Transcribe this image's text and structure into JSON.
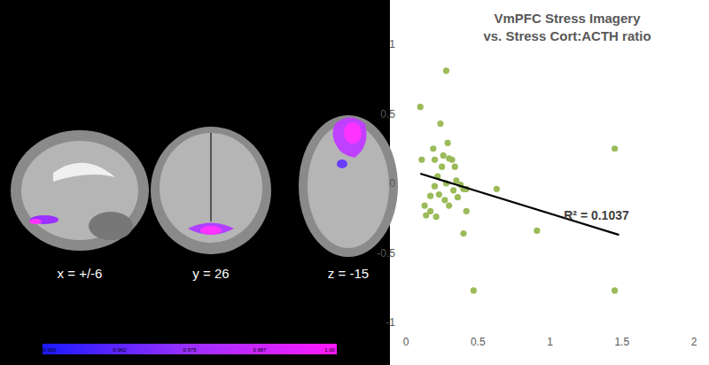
{
  "brain_panel": {
    "slices": [
      {
        "label": "x = +/-6"
      },
      {
        "label": "y = 26"
      },
      {
        "label": "z = -15"
      }
    ],
    "colorbar": {
      "labels": [
        "0.950",
        "0.962",
        "0.975",
        "0.987",
        "1.00"
      ]
    }
  },
  "chart_data": {
    "type": "scatter",
    "title": "VmPFC Stress Imagery\nvs. Stress Cort:ACTH ratio",
    "xlim": [
      0,
      2
    ],
    "xticks": [
      0,
      0.5,
      1,
      1.5,
      2
    ],
    "ylim": [
      -1,
      1
    ],
    "yticks": [
      -1,
      -0.5,
      0,
      0.5,
      1
    ],
    "grid": false,
    "series": [
      {
        "type": "scatter",
        "color": "#9bbb59",
        "marker": "circle",
        "x": [
          0.1,
          0.28,
          0.24,
          0.29,
          0.19,
          0.26,
          0.3,
          0.2,
          0.11,
          0.32,
          0.25,
          0.34,
          0.22,
          0.35,
          0.28,
          0.38,
          0.2,
          0.4,
          0.42,
          0.33,
          0.23,
          0.17,
          0.36,
          0.27,
          0.13,
          0.3,
          0.17,
          0.21,
          0.14,
          0.42,
          0.4,
          0.63,
          0.91,
          1.45,
          0.47,
          1.45
        ],
        "values": [
          0.55,
          0.81,
          0.43,
          0.29,
          0.25,
          0.2,
          0.18,
          0.17,
          0.17,
          0.17,
          0.12,
          0.12,
          0.05,
          0.02,
          0.0,
          -0.01,
          -0.02,
          -0.04,
          -0.04,
          -0.05,
          -0.08,
          -0.09,
          -0.1,
          -0.12,
          -0.16,
          -0.16,
          -0.2,
          -0.24,
          -0.23,
          -0.2,
          -0.36,
          -0.04,
          -0.34,
          0.25,
          -0.77,
          -0.77
        ]
      },
      {
        "type": "line",
        "color": "#000000",
        "line_style": "solid",
        "x": [
          0.1,
          1.48
        ],
        "values": [
          0.07,
          -0.37
        ]
      }
    ],
    "annotations": [
      {
        "text": "R² = 0.1037"
      }
    ]
  }
}
